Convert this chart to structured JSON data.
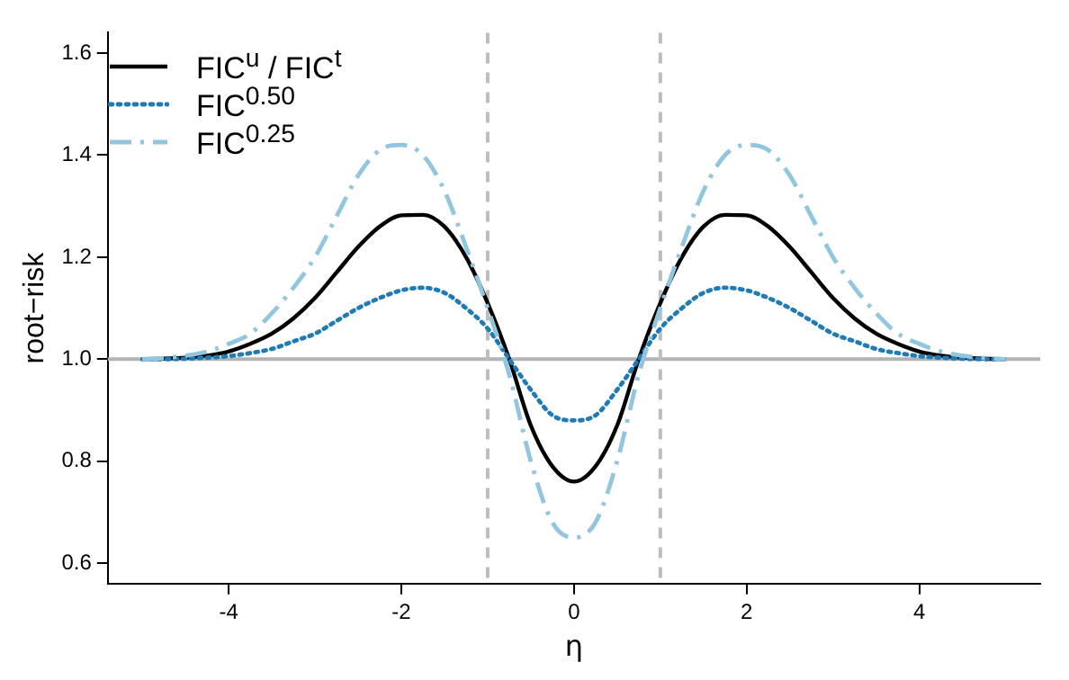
{
  "chart_data": {
    "type": "line",
    "xlabel": "η",
    "ylabel": "root−risk",
    "x": [
      -5,
      -4.75,
      -4.5,
      -4.25,
      -4,
      -3.75,
      -3.5,
      -3.25,
      -3,
      -2.75,
      -2.5,
      -2.25,
      -2,
      -1.75,
      -1.5,
      -1.25,
      -1,
      -0.75,
      -0.5,
      -0.25,
      0,
      0.25,
      0.5,
      0.75,
      1,
      1.25,
      1.5,
      1.75,
      2,
      2.25,
      2.5,
      2.75,
      3,
      3.25,
      3.5,
      3.75,
      4,
      4.25,
      4.5,
      4.75,
      5
    ],
    "series": [
      {
        "name": "FIC$^{u}$ / FIC$^{t}$",
        "color": "#000000",
        "line_style": "solid",
        "values": [
          1.0,
          1.001,
          1.003,
          1.007,
          1.015,
          1.03,
          1.05,
          1.08,
          1.12,
          1.17,
          1.22,
          1.26,
          1.282,
          1.283,
          1.26,
          1.2,
          1.11,
          1.0,
          0.87,
          0.79,
          0.76,
          0.79,
          0.87,
          1.0,
          1.11,
          1.2,
          1.26,
          1.283,
          1.282,
          1.26,
          1.22,
          1.17,
          1.12,
          1.08,
          1.05,
          1.03,
          1.015,
          1.007,
          1.003,
          1.001,
          1.0
        ]
      },
      {
        "name": "FIC$^{0.50}$",
        "color": "#1f7bb6",
        "line_style": "dotted",
        "values": [
          1.0,
          1.0,
          1.001,
          1.003,
          1.006,
          1.012,
          1.02,
          1.035,
          1.05,
          1.075,
          1.1,
          1.12,
          1.135,
          1.14,
          1.13,
          1.1,
          1.06,
          1.0,
          0.94,
          0.89,
          0.88,
          0.89,
          0.94,
          1.0,
          1.06,
          1.1,
          1.13,
          1.14,
          1.135,
          1.12,
          1.1,
          1.075,
          1.05,
          1.035,
          1.02,
          1.012,
          1.006,
          1.003,
          1.001,
          1.0,
          1.0
        ]
      },
      {
        "name": "FIC$^{0.25}$",
        "color": "#92c5de",
        "line_style": "dashdot",
        "values": [
          1.0,
          1.002,
          1.007,
          1.015,
          1.03,
          1.05,
          1.09,
          1.14,
          1.2,
          1.28,
          1.36,
          1.41,
          1.42,
          1.4,
          1.33,
          1.22,
          1.1,
          0.97,
          0.8,
          0.68,
          0.65,
          0.68,
          0.8,
          0.97,
          1.1,
          1.22,
          1.33,
          1.4,
          1.42,
          1.41,
          1.36,
          1.28,
          1.2,
          1.14,
          1.09,
          1.05,
          1.03,
          1.015,
          1.007,
          1.002,
          1.0
        ]
      }
    ],
    "xlim": [
      -5.4,
      5.4
    ],
    "xticks": [
      -4,
      -2,
      0,
      2,
      4
    ],
    "ylim": [
      0.56,
      1.64
    ],
    "yticks": [
      0.6,
      0.8,
      {
        "value": 1,
        "label": "1.0"
      },
      1.2,
      1.4,
      1.6
    ],
    "ref_lines": [
      {
        "axis": "y",
        "value": 1,
        "color": "#b3b3b3",
        "line_style": "solid"
      },
      {
        "axis": "x",
        "value": -1,
        "color": "#bdbdbd",
        "line_style": "dashed"
      },
      {
        "axis": "x",
        "value": 1,
        "color": "#bdbdbd",
        "line_style": "dashed"
      }
    ],
    "legend": "top left",
    "marker": "none"
  }
}
